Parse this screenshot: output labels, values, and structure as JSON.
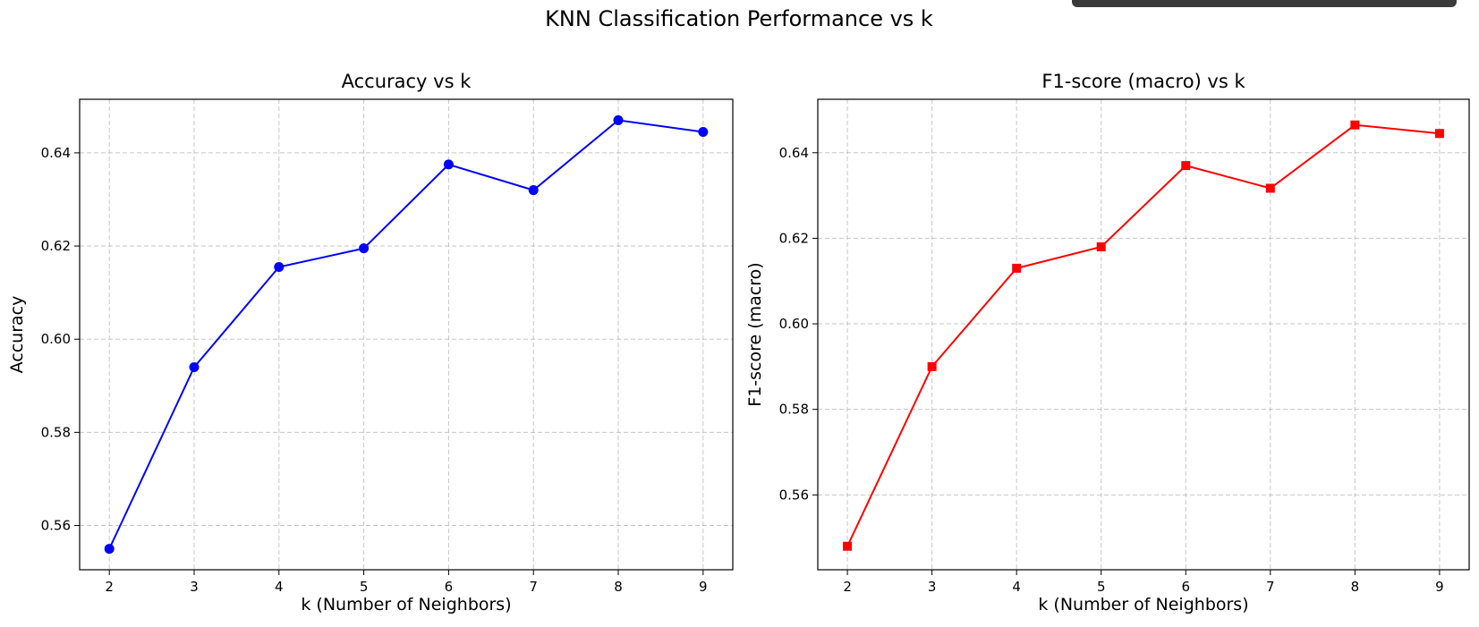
{
  "figure": {
    "suptitle": "KNN Classification Performance vs k"
  },
  "chart_data": [
    {
      "type": "line",
      "title": "Accuracy vs k",
      "xlabel": "k (Number of Neighbors)",
      "ylabel": "Accuracy",
      "x": [
        2,
        3,
        4,
        5,
        6,
        7,
        8,
        9
      ],
      "xticks": [
        2,
        3,
        4,
        5,
        6,
        7,
        8,
        9
      ],
      "yticks": [
        0.56,
        0.58,
        0.6,
        0.62,
        0.64
      ],
      "xlim": [
        1.65,
        9.35
      ],
      "ylim": [
        0.5505,
        0.6515
      ],
      "grid": true,
      "series": [
        {
          "values": [
            0.555,
            0.594,
            0.6155,
            0.6195,
            0.6375,
            0.632,
            0.647,
            0.6445
          ],
          "color": "#0000ff",
          "marker": "circle"
        }
      ]
    },
    {
      "type": "line",
      "title": "F1-score (macro) vs k",
      "xlabel": "k (Number of Neighbors)",
      "ylabel": "F1-score (macro)",
      "x": [
        2,
        3,
        4,
        5,
        6,
        7,
        8,
        9
      ],
      "xticks": [
        2,
        3,
        4,
        5,
        6,
        7,
        8,
        9
      ],
      "yticks": [
        0.56,
        0.58,
        0.6,
        0.62,
        0.64
      ],
      "xlim": [
        1.65,
        9.35
      ],
      "ylim": [
        0.5425,
        0.6525
      ],
      "grid": true,
      "series": [
        {
          "values": [
            0.548,
            0.59,
            0.613,
            0.618,
            0.637,
            0.6317,
            0.6465,
            0.6445
          ],
          "color": "#ff0000",
          "marker": "square"
        }
      ]
    }
  ]
}
